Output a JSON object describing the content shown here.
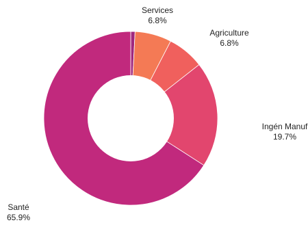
{
  "chart_data": {
    "type": "pie",
    "variant": "donut",
    "slices": [
      {
        "label": "",
        "value": 0.8,
        "display": "",
        "color": "#a0287e"
      },
      {
        "label": "Services",
        "value": 6.8,
        "display": "6.8%",
        "color": "#f47a55"
      },
      {
        "label": "Agriculture",
        "value": 6.8,
        "display": "6.8%",
        "color": "#f0605d"
      },
      {
        "label": "Ingén Manuf",
        "value": 19.7,
        "display": "19.7%",
        "color": "#e2466e"
      },
      {
        "label": "Santé",
        "value": 65.9,
        "display": "65.9%",
        "color": "#c1297d"
      }
    ],
    "legend": "none"
  }
}
